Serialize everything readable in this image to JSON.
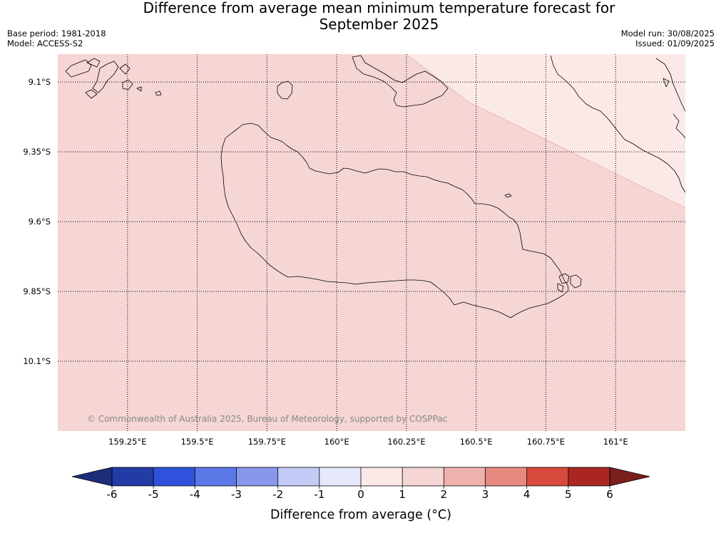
{
  "header": {
    "title_line1": "Difference from average mean minimum temperature forecast for",
    "title_line2": "September 2025",
    "base_period": "Base period: 1981-2018",
    "model": "Model: ACCESS-S2",
    "model_run": "Model run: 30/08/2025",
    "issued": "Issued: 01/09/2025"
  },
  "map": {
    "copyright": "© Commonwealth of Australia 2025, Bureau of Meteorology, supported by COSPPac",
    "grid": "dotted",
    "lat_ticks": [
      {
        "value": -9.1,
        "label": "9.1°S"
      },
      {
        "value": -9.35,
        "label": "9.35°S"
      },
      {
        "value": -9.6,
        "label": "9.6°S"
      },
      {
        "value": -9.85,
        "label": "9.85°S"
      },
      {
        "value": -10.1,
        "label": "10.1°S"
      }
    ],
    "lon_ticks": [
      {
        "value": 159.25,
        "label": "159.25°E"
      },
      {
        "value": 159.5,
        "label": "159.5°E"
      },
      {
        "value": 159.75,
        "label": "159.75°E"
      },
      {
        "value": 160.0,
        "label": "160°E"
      },
      {
        "value": 160.25,
        "label": "160.25°E"
      },
      {
        "value": 160.5,
        "label": "160.5°E"
      },
      {
        "value": 160.75,
        "label": "160.75°E"
      },
      {
        "value": 161.0,
        "label": "161°E"
      }
    ]
  },
  "chart_data": {
    "type": "heatmap",
    "title": "Difference from average mean minimum temperature forecast for September 2025",
    "xlim": [
      159.0,
      161.25
    ],
    "ylim": [
      -10.35,
      -9.0
    ],
    "regions": [
      {
        "name": "south-west",
        "value_range": [
          1,
          2
        ],
        "color": "#f5d6d4"
      },
      {
        "name": "north-east",
        "value_range": [
          0,
          1
        ],
        "color": "#fbe9e7"
      }
    ],
    "boundary": [
      [
        160.25,
        -9.0
      ],
      [
        160.47,
        -9.17
      ],
      [
        161.25,
        -9.55
      ]
    ],
    "colorbar": {
      "label": "Difference from average (°C)",
      "ticks": [
        -6,
        -5,
        -4,
        -3,
        -2,
        -1,
        0,
        1,
        2,
        3,
        4,
        5,
        6
      ],
      "tick_labels": [
        "-6",
        "-5",
        "-4",
        "-3",
        "-2",
        "-1",
        "0",
        "1",
        "2",
        "3",
        "4",
        "5",
        "6"
      ],
      "colors": [
        "#223ba6",
        "#2f52dd",
        "#5b78e6",
        "#8798ec",
        "#c2caf5",
        "#e6e9fb",
        "#fbe9e7",
        "#f5d6d4",
        "#eeb1ab",
        "#e68a80",
        "#d84a3e",
        "#aa2622"
      ],
      "under_color": "#1c2d7a",
      "over_color": "#7a1e1e",
      "extend": "both"
    }
  }
}
